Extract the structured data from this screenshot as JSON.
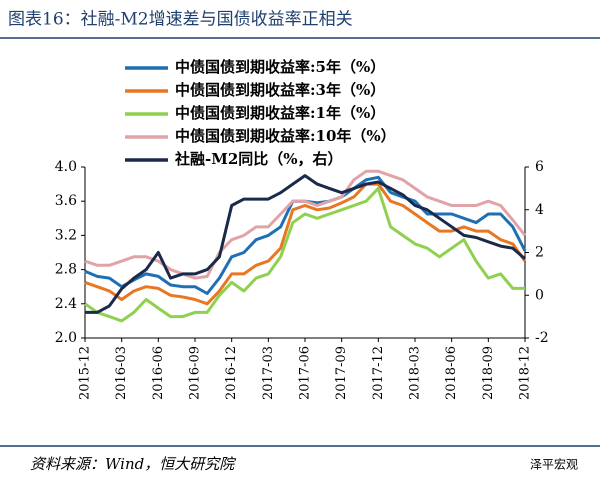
{
  "chart_data": {
    "type": "line",
    "title": "图表16：社融-M2增速差与国债收益率正相关",
    "source": "资料来源：Wind，恒大研究院",
    "watermark": "泽平宏观",
    "categories": [
      "2015-12",
      null,
      null,
      "2016-03",
      null,
      null,
      "2016-06",
      null,
      null,
      "2016-09",
      null,
      null,
      "2016-12",
      null,
      null,
      "2017-03",
      null,
      null,
      "2017-06",
      null,
      null,
      "2017-09",
      null,
      null,
      "2017-12",
      null,
      null,
      "2018-03",
      null,
      null,
      "2018-06",
      null,
      null,
      "2018-09",
      null,
      null,
      "2018-12"
    ],
    "series": [
      {
        "name": "中债国债到期收益率:5年（%）",
        "color": "#1f6fb4",
        "values": [
          2.78,
          2.72,
          2.7,
          2.6,
          2.68,
          2.75,
          2.72,
          2.62,
          2.6,
          2.6,
          2.52,
          2.7,
          2.95,
          3.0,
          3.15,
          3.2,
          3.3,
          3.6,
          3.6,
          3.58,
          3.6,
          3.65,
          3.75,
          3.85,
          3.88,
          3.7,
          3.65,
          3.6,
          3.45,
          3.45,
          3.45,
          3.4,
          3.35,
          3.45,
          3.45,
          3.3,
          3.02
        ]
      },
      {
        "name": "中债国债到期收益率:3年（%）",
        "color": "#e87722",
        "values": [
          2.65,
          2.6,
          2.55,
          2.45,
          2.55,
          2.6,
          2.58,
          2.5,
          2.48,
          2.45,
          2.4,
          2.55,
          2.75,
          2.75,
          2.85,
          2.9,
          3.05,
          3.5,
          3.55,
          3.5,
          3.52,
          3.58,
          3.65,
          3.8,
          3.8,
          3.6,
          3.55,
          3.45,
          3.35,
          3.25,
          3.25,
          3.3,
          3.25,
          3.25,
          3.15,
          3.1,
          2.9
        ]
      },
      {
        "name": "中债国债到期收益率:1年（%）",
        "color": "#8fd14f",
        "values": [
          2.4,
          2.3,
          2.25,
          2.2,
          2.3,
          2.45,
          2.35,
          2.25,
          2.25,
          2.3,
          2.3,
          2.5,
          2.65,
          2.55,
          2.7,
          2.75,
          2.95,
          3.35,
          3.45,
          3.4,
          3.45,
          3.5,
          3.55,
          3.6,
          3.75,
          3.3,
          3.2,
          3.1,
          3.05,
          2.95,
          3.05,
          3.15,
          2.9,
          2.7,
          2.75,
          2.58,
          2.58
        ]
      },
      {
        "name": "中债国债到期收益率:10年（%）",
        "color": "#e0a3a8",
        "values": [
          2.9,
          2.85,
          2.85,
          2.9,
          2.95,
          2.95,
          2.9,
          2.8,
          2.75,
          2.7,
          2.72,
          3.0,
          3.15,
          3.2,
          3.3,
          3.3,
          3.45,
          3.6,
          3.6,
          3.55,
          3.6,
          3.65,
          3.85,
          3.95,
          3.95,
          3.9,
          3.85,
          3.75,
          3.65,
          3.6,
          3.55,
          3.55,
          3.55,
          3.6,
          3.55,
          3.38,
          3.2
        ]
      },
      {
        "name": "社融-M2同比（%，右）",
        "color": "#1b2a4a",
        "axis": "y2",
        "values": [
          -0.8,
          -0.8,
          -0.5,
          0.3,
          0.8,
          1.2,
          2.0,
          0.8,
          1.0,
          1.0,
          1.2,
          1.8,
          4.2,
          4.5,
          4.5,
          4.5,
          4.8,
          5.2,
          5.6,
          5.2,
          5.0,
          4.8,
          5.0,
          5.2,
          5.3,
          5.0,
          4.7,
          4.2,
          4.0,
          3.6,
          3.2,
          2.8,
          2.7,
          2.5,
          2.3,
          2.2,
          1.7
        ]
      }
    ],
    "ylim": [
      2.0,
      4.0
    ],
    "yticks": [
      {
        "value": 2.0,
        "label": "2.0"
      },
      2.4,
      2.8,
      3.2,
      3.6,
      {
        "value": 4.0,
        "label": "4.0"
      }
    ],
    "y2lim": [
      -2,
      6
    ],
    "y2ticks": [
      -2,
      0,
      2,
      4,
      6
    ]
  }
}
